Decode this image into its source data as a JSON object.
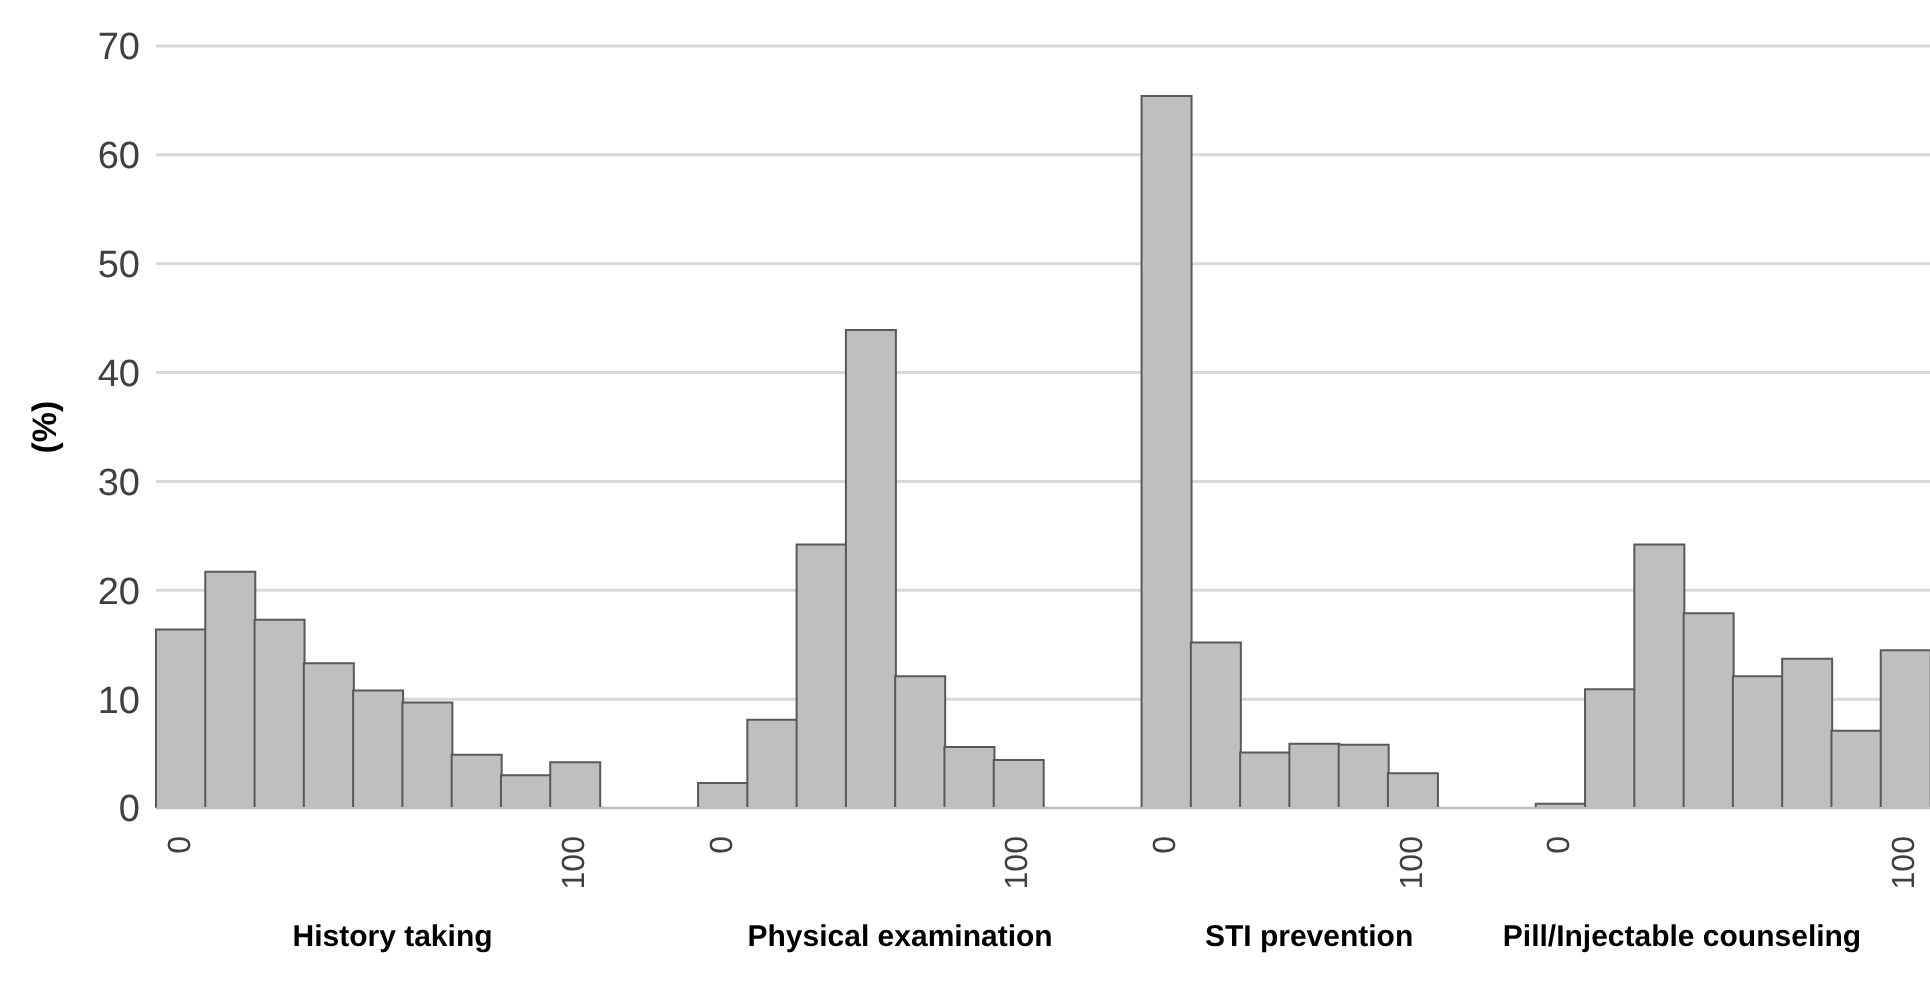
{
  "chart_data": {
    "type": "bar",
    "ylabel": "(%)",
    "categories": [
      "0",
      null,
      null,
      null,
      null,
      null,
      null,
      null,
      "100",
      null,
      null,
      "0",
      null,
      null,
      null,
      null,
      null,
      "100",
      null,
      null,
      "0",
      null,
      null,
      null,
      null,
      "100",
      null,
      null,
      "0",
      null,
      null,
      null,
      null,
      null,
      null,
      "100"
    ],
    "values": [
      16.4,
      21.7,
      17.3,
      13.3,
      10.8,
      9.7,
      4.9,
      3.0,
      4.2,
      null,
      null,
      2.3,
      8.1,
      24.2,
      43.9,
      12.1,
      5.6,
      4.4,
      null,
      null,
      65.4,
      15.2,
      5.1,
      5.9,
      5.8,
      3.2,
      null,
      null,
      0.4,
      10.9,
      24.2,
      17.9,
      12.1,
      13.7,
      7.1,
      14.5
    ],
    "color": "#bfbfbf",
    "ylim": [
      0,
      70
    ],
    "yticks": [
      0,
      10,
      20,
      30,
      40,
      50,
      60,
      70
    ],
    "grid": "y",
    "annotations": [
      "History taking",
      "Physical examination",
      "STI prevention",
      "Pill/Injectable counseling"
    ]
  }
}
